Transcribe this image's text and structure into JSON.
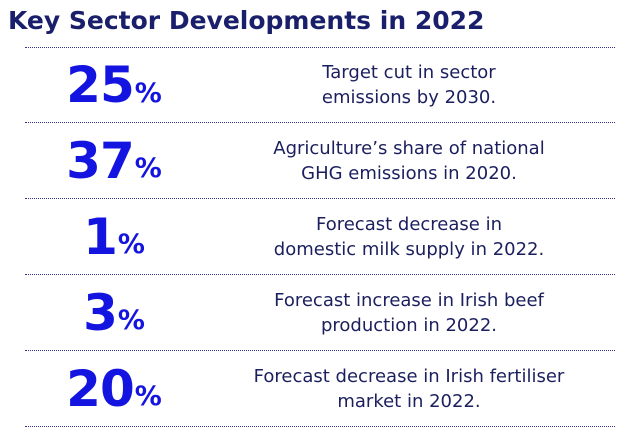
{
  "title": "Key Sector Developments in 2022",
  "stats": [
    {
      "value": "25",
      "unit": "%",
      "line1": "Target cut in sector",
      "line2": "emissions by 2030."
    },
    {
      "value": "37",
      "unit": "%",
      "line1": "Agriculture’s share of national",
      "line2": "GHG emissions in 2020."
    },
    {
      "value": "1",
      "unit": "%",
      "line1": "Forecast decrease in",
      "line2": "domestic milk supply in 2022."
    },
    {
      "value": "3",
      "unit": "%",
      "line1": "Forecast increase in Irish beef",
      "line2": "production in 2022."
    },
    {
      "value": "20",
      "unit": "%",
      "line1": "Forecast decrease in Irish fertiliser",
      "line2": "market in 2022."
    }
  ],
  "colors": {
    "title": "#1a1f6b",
    "stat_number": "#1414e0",
    "description": "#1b1f5e",
    "divider": "#2e3190"
  }
}
